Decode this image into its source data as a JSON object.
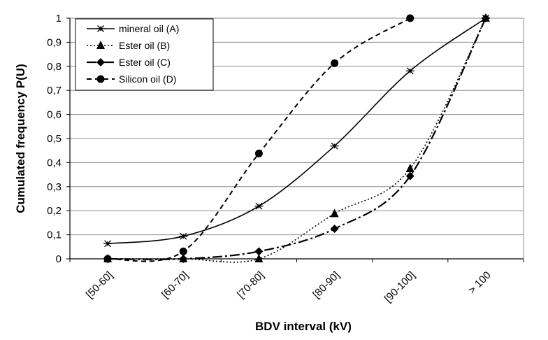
{
  "chart_data": {
    "type": "line",
    "title": "",
    "xlabel": "BDV interval (kV)",
    "ylabel": "Cumulated frequency P(U)",
    "categories": [
      "[50-60]",
      "[60-70]",
      "[70-80]",
      "[80-90]",
      "[90-100]",
      "> 100"
    ],
    "ylim": [
      0,
      1
    ],
    "yticks": [
      "0",
      "0,1",
      "0,2",
      "0,3",
      "0,4",
      "0,5",
      "0,6",
      "0,7",
      "0,8",
      "0,9",
      "1"
    ],
    "grid": true,
    "legend_position": "top-left",
    "series": [
      {
        "name": "mineral oil (A)",
        "values": [
          0.063,
          0.094,
          0.219,
          0.469,
          0.781,
          1.0
        ],
        "marker": "asterisk",
        "line": "solid"
      },
      {
        "name": "Ester oil (B)",
        "values": [
          0.0,
          0.0,
          0.0,
          0.188,
          0.375,
          1.0
        ],
        "marker": "triangle",
        "line": "dotted"
      },
      {
        "name": "Ester oil (C)",
        "values": [
          0.0,
          0.0,
          0.031,
          0.125,
          0.344,
          1.0
        ],
        "marker": "diamond",
        "line": "dashdot"
      },
      {
        "name": "Silicon oil (D)",
        "values": [
          0.0,
          0.031,
          0.438,
          0.813,
          1.0,
          null
        ],
        "marker": "circle",
        "line": "dashed"
      }
    ]
  }
}
